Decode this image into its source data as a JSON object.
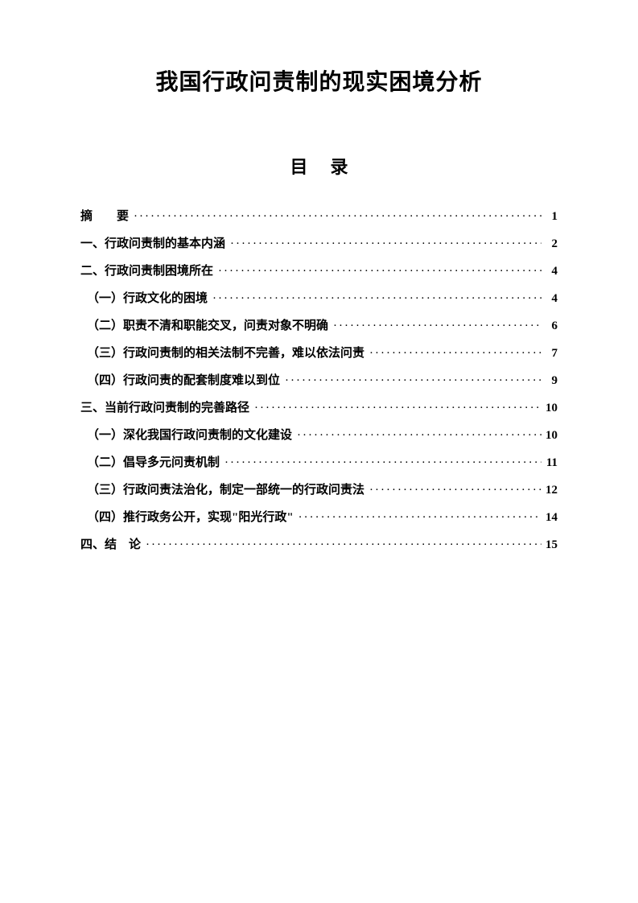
{
  "document": {
    "main_title": "我国行政问责制的现实困境分析",
    "toc_title": "目录",
    "background_color": "#ffffff",
    "text_color": "#000000",
    "title_fontsize": 28,
    "toc_title_fontsize": 22,
    "entry_fontsize": 15,
    "dots": "························································································"
  },
  "toc": {
    "entries": [
      {
        "label": "摘　　要",
        "page": "1",
        "indent": false
      },
      {
        "label": "一、行政问责制的基本内涵",
        "page": "2",
        "indent": false
      },
      {
        "label": "二、行政问责制困境所在",
        "page": "4",
        "indent": false
      },
      {
        "label": "（一）行政文化的困境",
        "page": "4",
        "indent": true
      },
      {
        "label": "（二）职责不清和职能交叉，问责对象不明确",
        "page": "6",
        "indent": true
      },
      {
        "label": "（三）行政问责制的相关法制不完善，难以依法问责",
        "page": "7",
        "indent": true
      },
      {
        "label": "（四）行政问责的配套制度难以到位",
        "page": "9",
        "indent": true
      },
      {
        "label": "三、当前行政问责制的完善路径",
        "page": "10",
        "indent": false
      },
      {
        "label": "（一）深化我国行政问责制的文化建设",
        "page": "10",
        "indent": true
      },
      {
        "label": "（二）倡导多元问责机制",
        "page": "11",
        "indent": true
      },
      {
        "label": "（三）行政问责法治化，制定一部统一的行政问责法",
        "page": "12",
        "indent": true
      },
      {
        "label": "（四）推行政务公开，实现\"阳光行政\"",
        "page": "14",
        "indent": true
      },
      {
        "label": "四、结　论",
        "page": "15",
        "indent": false
      }
    ]
  }
}
